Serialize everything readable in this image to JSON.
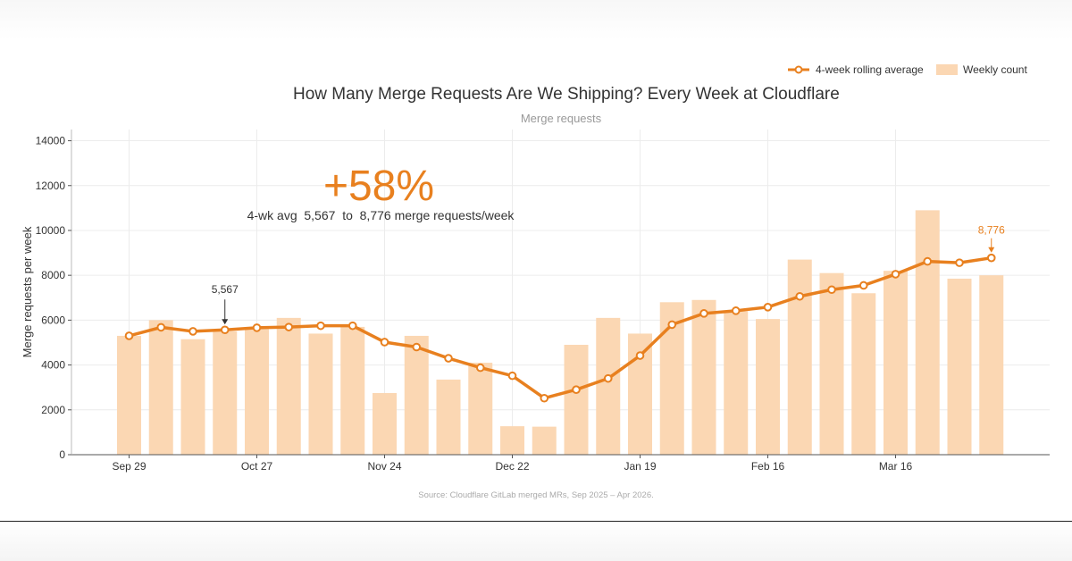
{
  "chart_data": {
    "type": "bar",
    "title": "How Many Merge Requests Are We Shipping? Every Week at Cloudflare",
    "subtitle": "Merge requests",
    "ylabel": "Merge requests per week",
    "xlabel": "",
    "ylim": [
      0,
      14500
    ],
    "yticks": [
      0,
      2000,
      4000,
      6000,
      8000,
      10000,
      12000,
      14000
    ],
    "x_tick_labels": [
      "Sep 29",
      "Oct 27",
      "Nov 24",
      "Dec 22",
      "Jan 19",
      "Feb 16",
      "Mar 16"
    ],
    "x_tick_indices": [
      0,
      4,
      8,
      12,
      16,
      20,
      24
    ],
    "grid": true,
    "legend_position": "top-right",
    "colors": {
      "bar": "#fbd7b3",
      "line": "#e8801f",
      "highlight": "#e8801f"
    },
    "series": [
      {
        "name": "Weekly count",
        "kind": "bar",
        "values": [
          5300,
          6000,
          5150,
          5500,
          5600,
          6100,
          5400,
          5700,
          2750,
          5300,
          3350,
          4100,
          1270,
          1250,
          4900,
          6100,
          5400,
          6800,
          6900,
          6400,
          6050,
          8700,
          8100,
          7200,
          8200,
          10900,
          7850,
          8000
        ]
      },
      {
        "name": "4-week rolling average",
        "kind": "line",
        "values": [
          5300,
          5680,
          5500,
          5567,
          5660,
          5690,
          5750,
          5750,
          5020,
          4800,
          4300,
          3880,
          3520,
          2520,
          2900,
          3400,
          4420,
          5800,
          6300,
          6420,
          6580,
          7060,
          7360,
          7550,
          8050,
          8620,
          8560,
          8776
        ]
      }
    ],
    "annotations": {
      "headline": "+58%",
      "summary": "4-wk avg  5,567  to  8,776 merge requests/week",
      "start_label": "5,567",
      "end_label": "8,776"
    },
    "source": "Source: Cloudflare GitLab merged MRs, Sep 2025 – Apr 2026."
  }
}
